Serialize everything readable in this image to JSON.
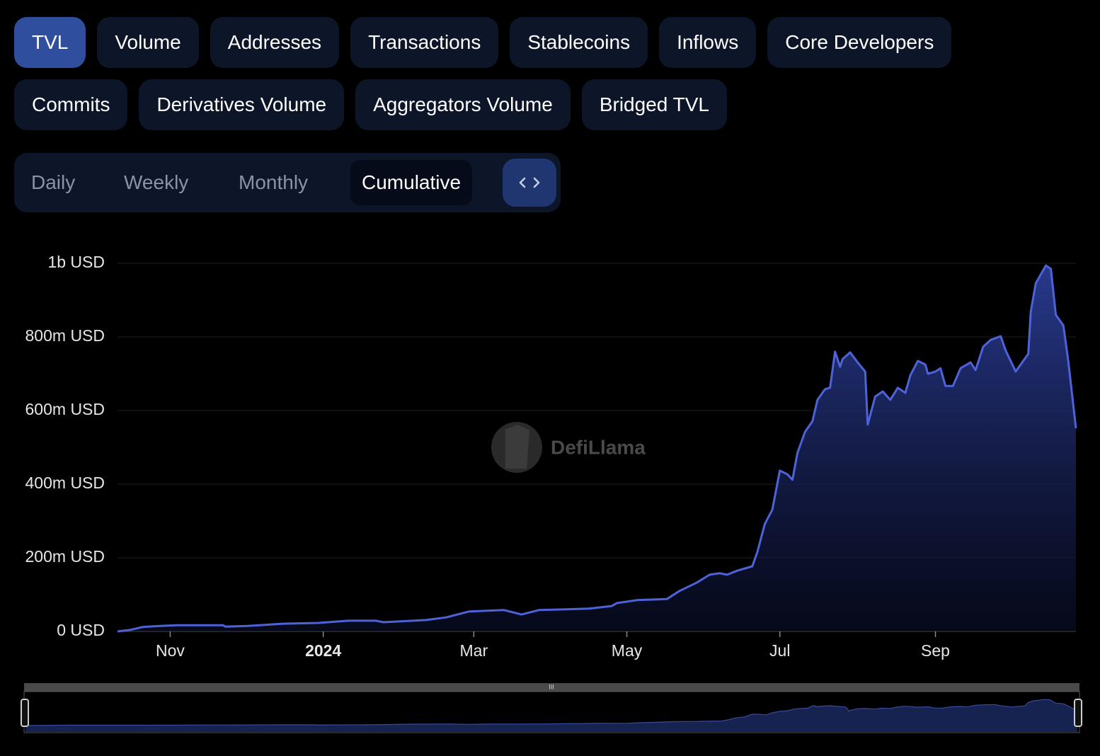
{
  "metric_tabs": [
    "TVL",
    "Volume",
    "Addresses",
    "Transactions",
    "Stablecoins",
    "Inflows",
    "Core Developers",
    "Commits",
    "Derivatives Volume",
    "Aggregators Volume",
    "Bridged TVL"
  ],
  "active_metric_index": 0,
  "period_tabs": [
    "Daily",
    "Weekly",
    "Monthly",
    "Cumulative"
  ],
  "active_period_index": 3,
  "watermark": "DefiLlama",
  "chart_data": {
    "type": "area",
    "color": "#4f63d8",
    "grid": true,
    "x": [
      0,
      5,
      10,
      17,
      24,
      42,
      43,
      52,
      66,
      80,
      92,
      103,
      106,
      123,
      131,
      140,
      154,
      161,
      168,
      179,
      188,
      197,
      199,
      207,
      219,
      224,
      231,
      236,
      240,
      243,
      247,
      253,
      255,
      258,
      261,
      264,
      267,
      269,
      271,
      274,
      277,
      279,
      282,
      284,
      286,
      288,
      289,
      292,
      295,
      298,
      299,
      302,
      305,
      308,
      311,
      314,
      316,
      319,
      322,
      323,
      326,
      328,
      330,
      333,
      336,
      340,
      342,
      345,
      348,
      352,
      354,
      358,
      361,
      363,
      364,
      366,
      370,
      372,
      374,
      377,
      379,
      382
    ],
    "values": [
      0,
      4000000,
      12000000,
      15000000,
      17000000,
      17000000,
      13000000,
      15000000,
      21000000,
      23000000,
      29000000,
      29000000,
      25000000,
      31000000,
      38000000,
      54000000,
      58000000,
      46000000,
      58000000,
      60000000,
      62000000,
      69000000,
      77000000,
      85000000,
      88000000,
      110000000,
      133000000,
      154000000,
      158000000,
      154000000,
      165000000,
      177000000,
      215000000,
      292000000,
      331000000,
      437000000,
      427000000,
      412000000,
      485000000,
      542000000,
      571000000,
      629000000,
      658000000,
      662000000,
      760000000,
      719000000,
      740000000,
      758000000,
      731000000,
      706000000,
      562000000,
      638000000,
      652000000,
      629000000,
      662000000,
      648000000,
      696000000,
      735000000,
      725000000,
      700000000,
      706000000,
      715000000,
      667000000,
      667000000,
      715000000,
      731000000,
      710000000,
      773000000,
      792000000,
      802000000,
      763000000,
      706000000,
      735000000,
      754000000,
      869000000,
      946000000,
      994000000,
      985000000,
      860000000,
      831000000,
      731000000,
      552000000
    ],
    "xlim": [
      0,
      382
    ],
    "xticks": [
      {
        "value": 21,
        "label": "Nov"
      },
      {
        "value": 82,
        "label": "2024",
        "bold": true
      },
      {
        "value": 142,
        "label": "Mar"
      },
      {
        "value": 203,
        "label": "May"
      },
      {
        "value": 264,
        "label": "Jul"
      },
      {
        "value": 326,
        "label": "Sep"
      }
    ],
    "ylim": [
      0,
      1000000000
    ],
    "yticks": [
      {
        "value": 0,
        "label": "0 USD"
      },
      {
        "value": 200000000,
        "label": "200m USD"
      },
      {
        "value": 400000000,
        "label": "400m USD"
      },
      {
        "value": 600000000,
        "label": "600m USD"
      },
      {
        "value": 800000000,
        "label": "800m USD"
      },
      {
        "value": 1000000000,
        "label": "1b USD"
      }
    ]
  }
}
